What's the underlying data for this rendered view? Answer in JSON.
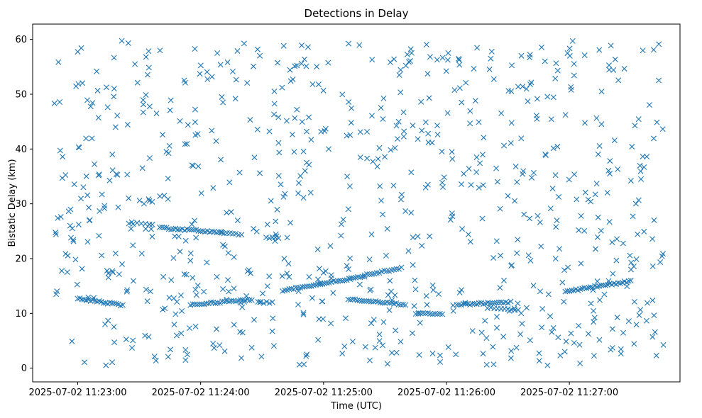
{
  "chart_data": {
    "type": "scatter",
    "title": "Detections in Delay",
    "xlabel": "Time (UTC)",
    "ylabel": "Bistatic Delay (km)",
    "marker": "x",
    "color": "#1f77b4",
    "grid": false,
    "legend": "none",
    "x_time_range": [
      "2025-07-02 11:22:46",
      "2025-07-02 11:27:46"
    ],
    "xlim": [
      "2025-07-02 11:22:38",
      "2025-07-02 11:27:54"
    ],
    "ylim": [
      -2.5,
      62.8
    ],
    "x_ticks": [
      {
        "time": "2025-07-02 11:23:00",
        "label": "2025-07-02 11:23:00"
      },
      {
        "time": "2025-07-02 11:24:00",
        "label": "2025-07-02 11:24:00"
      },
      {
        "time": "2025-07-02 11:25:00",
        "label": "2025-07-02 11:25:00"
      },
      {
        "time": "2025-07-02 11:26:00",
        "label": "2025-07-02 11:26:00"
      },
      {
        "time": "2025-07-02 11:27:00",
        "label": "2025-07-02 11:27:00"
      }
    ],
    "y_ticks": [
      0,
      10,
      20,
      30,
      40,
      50,
      60
    ],
    "tracks": [
      {
        "start": "2025-07-02 11:23:00",
        "end": "2025-07-02 11:23:22",
        "delay_start": 12.7,
        "delay_end": 11.5,
        "count": 22
      },
      {
        "start": "2025-07-02 11:23:25",
        "end": "2025-07-02 11:23:35",
        "delay_start": 26.5,
        "delay_end": 26.2,
        "count": 6
      },
      {
        "start": "2025-07-02 11:23:40",
        "end": "2025-07-02 11:24:10",
        "delay_start": 25.6,
        "delay_end": 24.8,
        "count": 28
      },
      {
        "start": "2025-07-02 11:24:10",
        "end": "2025-07-02 11:24:20",
        "delay_start": 24.8,
        "delay_end": 24.4,
        "count": 8
      },
      {
        "start": "2025-07-02 11:23:55",
        "end": "2025-07-02 11:24:25",
        "delay_start": 11.6,
        "delay_end": 12.5,
        "count": 28
      },
      {
        "start": "2025-07-02 11:24:28",
        "end": "2025-07-02 11:24:35",
        "delay_start": 12.0,
        "delay_end": 12.0,
        "count": 6
      },
      {
        "start": "2025-07-02 11:24:32",
        "end": "2025-07-02 11:24:38",
        "delay_start": 23.8,
        "delay_end": 23.8,
        "count": 5
      },
      {
        "start": "2025-07-02 11:24:40",
        "end": "2025-07-02 11:25:20",
        "delay_start": 14.2,
        "delay_end": 16.8,
        "count": 38
      },
      {
        "start": "2025-07-02 11:25:12",
        "end": "2025-07-02 11:25:40",
        "delay_start": 12.6,
        "delay_end": 11.6,
        "count": 26
      },
      {
        "start": "2025-07-02 11:25:20",
        "end": "2025-07-02 11:25:38",
        "delay_start": 17.0,
        "delay_end": 18.3,
        "count": 16
      },
      {
        "start": "2025-07-02 11:25:45",
        "end": "2025-07-02 11:25:58",
        "delay_start": 10.0,
        "delay_end": 10.0,
        "count": 12
      },
      {
        "start": "2025-07-02 11:26:05",
        "end": "2025-07-02 11:26:30",
        "delay_start": 11.6,
        "delay_end": 12.0,
        "count": 24
      },
      {
        "start": "2025-07-02 11:26:20",
        "end": "2025-07-02 11:26:35",
        "delay_start": 11.0,
        "delay_end": 10.6,
        "count": 10
      },
      {
        "start": "2025-07-02 11:26:58",
        "end": "2025-07-02 11:27:30",
        "delay_start": 14.0,
        "delay_end": 15.9,
        "count": 32
      }
    ],
    "clutter": {
      "count": 780,
      "delay_range": [
        0.5,
        59.8
      ]
    }
  }
}
